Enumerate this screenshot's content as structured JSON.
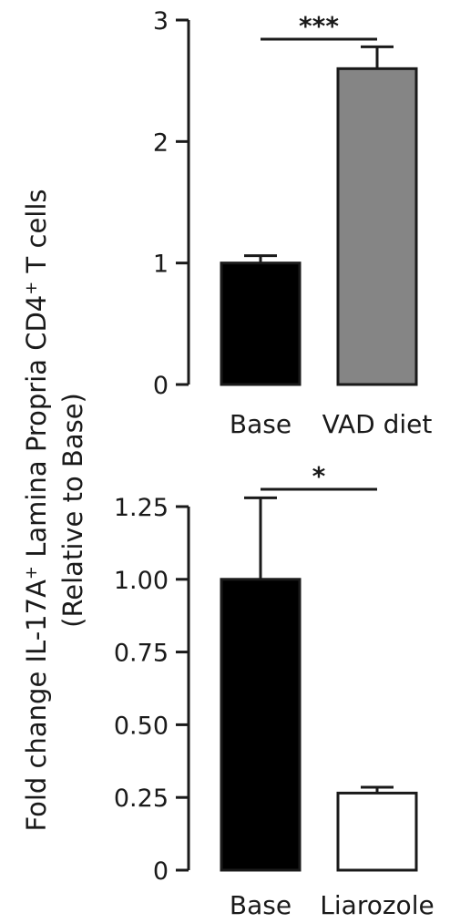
{
  "chart_data": [
    {
      "type": "bar",
      "title": "",
      "xlabel": "",
      "ylabel": "",
      "categories": [
        "Base",
        "VAD diet"
      ],
      "values": [
        1.0,
        2.6
      ],
      "errors": [
        0.06,
        0.18
      ],
      "colors": [
        "#000000",
        "#858585"
      ],
      "ylim": [
        0,
        3
      ],
      "yticks": [
        0,
        1,
        2,
        3
      ],
      "ytick_labels": [
        "0",
        "1",
        "2",
        "3"
      ],
      "significance": {
        "from": 0,
        "to": 1,
        "label": "***"
      }
    },
    {
      "type": "bar",
      "title": "",
      "xlabel": "",
      "ylabel": "",
      "categories": [
        "Base",
        "Liarozole"
      ],
      "values": [
        1.0,
        0.265
      ],
      "errors": [
        0.28,
        0.02
      ],
      "colors": [
        "#000000",
        "#ffffff"
      ],
      "ylim": [
        0,
        1.25
      ],
      "yticks": [
        0,
        0.25,
        0.5,
        0.75,
        1.0,
        1.25
      ],
      "ytick_labels": [
        "0",
        "0.25",
        "0.50",
        "0.75",
        "1.00",
        "1.25"
      ],
      "significance": {
        "from": 0,
        "to": 1,
        "label": "*"
      }
    }
  ],
  "shared_ylabel": {
    "line1_prefix": "Fold change IL-17A",
    "line1_sup1": "+",
    "line1_middle": " Lamina Propria CD4",
    "line1_sup2": "+",
    "line1_suffix": " T cells",
    "line2": "(Relative to Base)"
  }
}
